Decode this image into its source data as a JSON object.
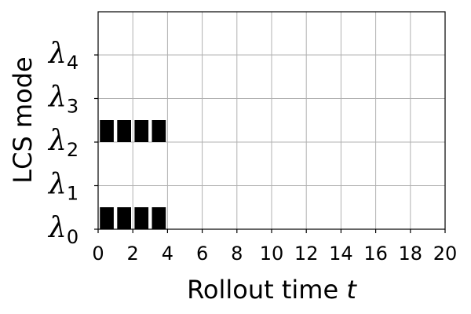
{
  "chart_data": {
    "type": "bar",
    "title": "",
    "xlabel": "Rollout time",
    "xlabel_var": "t",
    "ylabel": "LCS mode",
    "xlim": [
      0,
      20
    ],
    "xticks": [
      "0",
      "2",
      "4",
      "6",
      "8",
      "10",
      "12",
      "14",
      "16",
      "18",
      "20"
    ],
    "yticks": [
      {
        "symbol": "λ",
        "sub": "0"
      },
      {
        "symbol": "λ",
        "sub": "1"
      },
      {
        "symbol": "λ",
        "sub": "2"
      },
      {
        "symbol": "λ",
        "sub": "3"
      },
      {
        "symbol": "λ",
        "sub": "4"
      }
    ],
    "grid": true,
    "series": [
      {
        "mode": "λ0",
        "active_steps": [
          0,
          1,
          2,
          3
        ]
      },
      {
        "mode": "λ2",
        "active_steps": [
          0,
          1,
          2,
          3
        ]
      }
    ],
    "step_width": 0.8
  }
}
